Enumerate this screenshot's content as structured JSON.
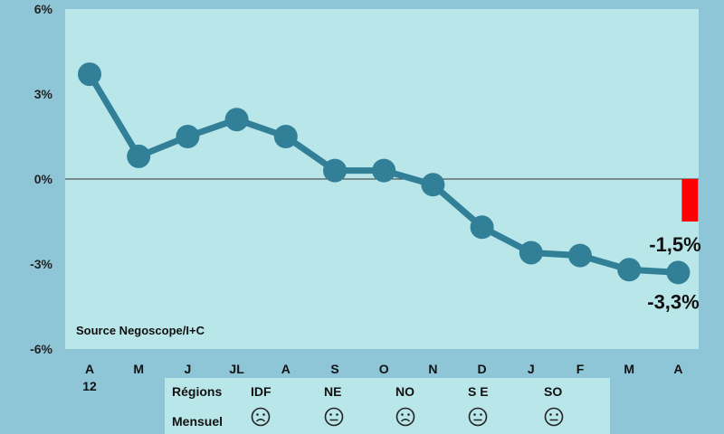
{
  "chart_data": {
    "type": "line",
    "source": "Source Negoscope/I+C",
    "categories": [
      "A",
      "M",
      "J",
      "JL",
      "A",
      "S",
      "O",
      "N",
      "D",
      "J",
      "F",
      "M",
      "A"
    ],
    "category_sublabels": [
      "12",
      "",
      "",
      "",
      "",
      "",
      "",
      "",
      "",
      "",
      "",
      "",
      ""
    ],
    "series": [
      {
        "values": [
          3.7,
          0.8,
          1.5,
          2.1,
          1.5,
          0.3,
          0.3,
          -0.2,
          -1.7,
          -2.6,
          -2.7,
          -3.2,
          -3.3
        ]
      }
    ],
    "bar": {
      "category_index": 12,
      "value": -1.5
    },
    "data_labels": {
      "bar": "-1,5%",
      "last_point": "-3,3%"
    },
    "yticks": [
      "6%",
      "3%",
      "0%",
      "-3%",
      "-6%"
    ],
    "ylim": [
      -6,
      6
    ],
    "colors": {
      "line": "#327f98",
      "bar": "#ff0000",
      "plot_bg": "#b9e6e8",
      "page_bg": "#8ec6d8"
    }
  },
  "legend": {
    "row1_label": "Régions",
    "row2_label": "Mensuel",
    "regions": [
      "IDF",
      "NE",
      "NO",
      "S E",
      "SO"
    ],
    "moods": [
      "sad-face-icon",
      "neutral-face-icon",
      "sad-face-icon",
      "neutral-face-icon",
      "neutral-face-icon"
    ]
  }
}
